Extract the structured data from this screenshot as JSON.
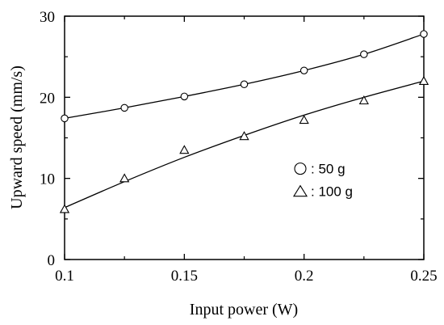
{
  "chart_data": {
    "type": "scatter",
    "title": "",
    "xlabel": "Input power (W)",
    "ylabel": "Upward speed (mm/s)",
    "xlim": [
      0.1,
      0.25
    ],
    "ylim": [
      0,
      30
    ],
    "xticks": [
      0.1,
      0.15,
      0.2,
      0.25
    ],
    "xtick_labels": [
      "0.1",
      "0.15",
      "0.2",
      "0.25"
    ],
    "yticks": [
      0,
      10,
      20,
      30
    ],
    "ytick_labels": [
      "0",
      "10",
      "20",
      "30"
    ],
    "grid": false,
    "legend_placement": "center-right",
    "series": [
      {
        "name": "50 g",
        "legend_label": ": 50 g",
        "marker": "circle",
        "x": [
          0.1,
          0.125,
          0.15,
          0.175,
          0.2,
          0.225,
          0.25
        ],
        "y": [
          17.4,
          18.7,
          20.1,
          21.6,
          23.3,
          25.3,
          27.8
        ],
        "fit": [
          [
            0.1,
            17.4
          ],
          [
            0.125,
            18.7
          ],
          [
            0.15,
            20.1
          ],
          [
            0.175,
            21.6
          ],
          [
            0.2,
            23.3
          ],
          [
            0.225,
            25.3
          ],
          [
            0.25,
            27.8
          ]
        ]
      },
      {
        "name": "100 g",
        "legend_label": ": 100 g",
        "marker": "triangle",
        "x": [
          0.1,
          0.125,
          0.15,
          0.175,
          0.2,
          0.225,
          0.25
        ],
        "y": [
          6.2,
          10.0,
          13.5,
          15.2,
          17.2,
          19.6,
          22.0
        ],
        "fit": [
          [
            0.1,
            6.4
          ],
          [
            0.125,
            9.6
          ],
          [
            0.15,
            12.6
          ],
          [
            0.175,
            15.3
          ],
          [
            0.2,
            17.8
          ],
          [
            0.225,
            20.0
          ],
          [
            0.25,
            22.0
          ]
        ]
      }
    ]
  }
}
